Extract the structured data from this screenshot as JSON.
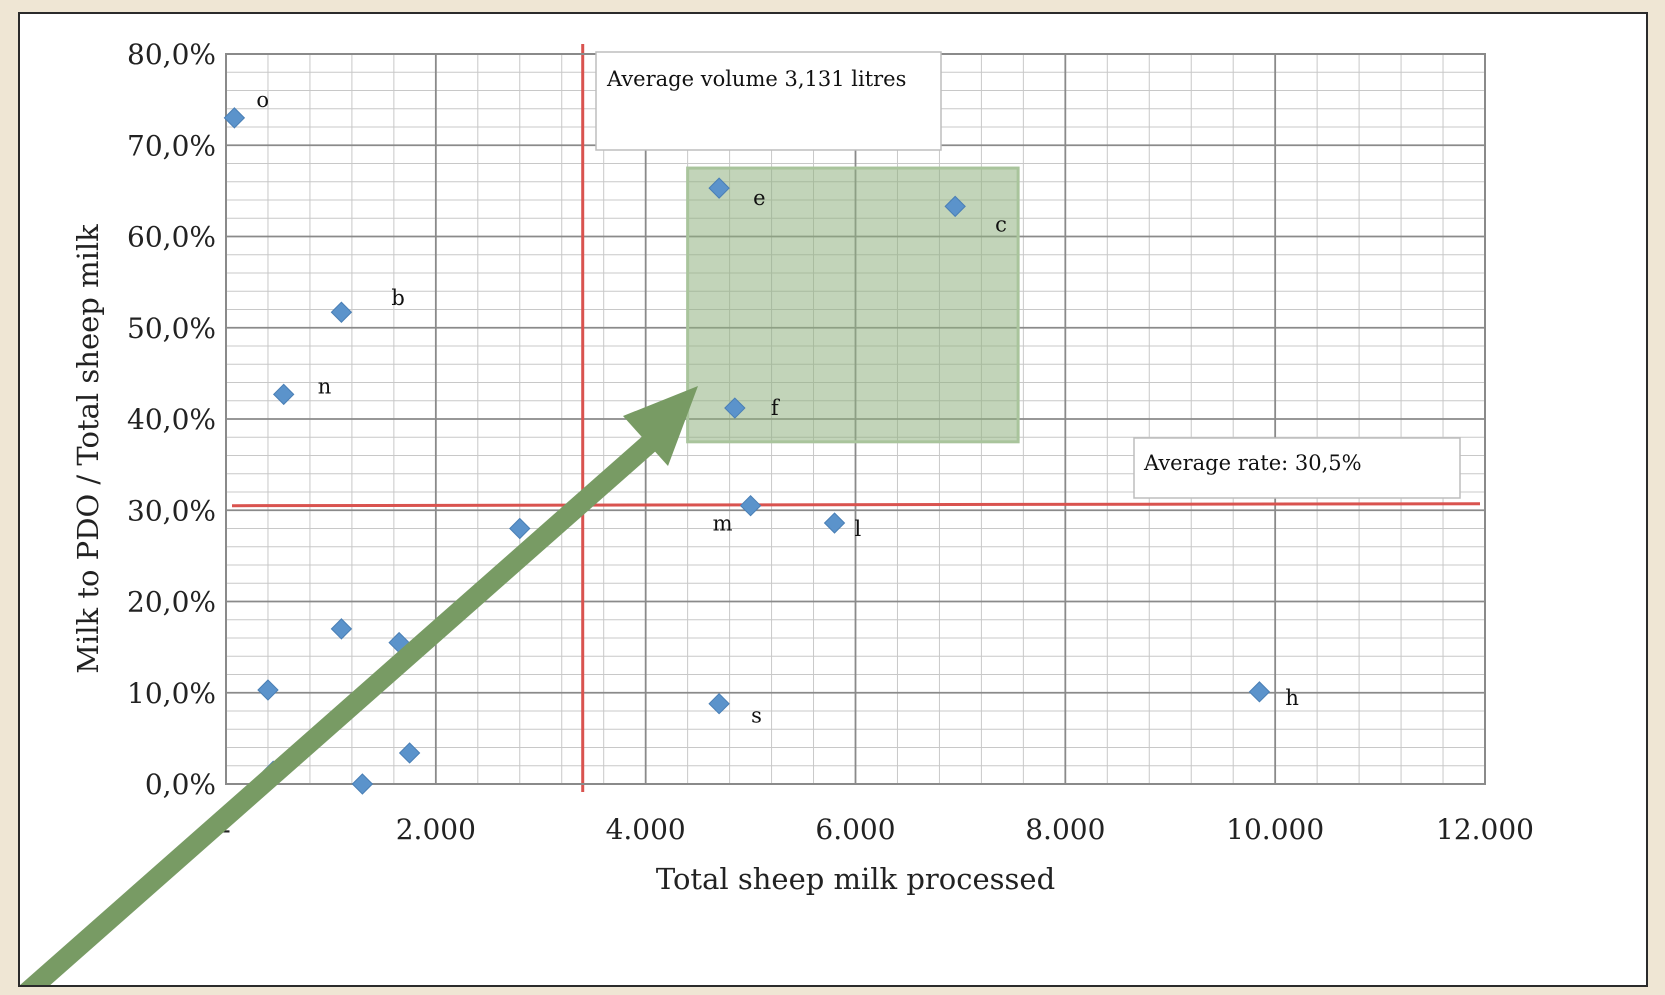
{
  "chart_data": {
    "type": "scatter",
    "xlabel": "Total sheep milk processed",
    "ylabel": "Milk to PDO / Total sheep milk",
    "xlim": [
      0,
      12000
    ],
    "ylim": [
      0,
      80
    ],
    "x_ticks": [
      "-",
      "2.000",
      "4.000",
      "6.000",
      "8.000",
      "10.000",
      "12.000"
    ],
    "y_ticks": [
      "0,0%",
      "10,0%",
      "20,0%",
      "30,0%",
      "40,0%",
      "50,0%",
      "60,0%",
      "70,0%",
      "80,0%"
    ],
    "grid": true,
    "marker_color": "#5b93cb",
    "points": [
      {
        "x": 80,
        "y": 73.0,
        "label": "o"
      },
      {
        "x": 1100,
        "y": 51.7,
        "label": "b"
      },
      {
        "x": 550,
        "y": 42.7,
        "label": "n"
      },
      {
        "x": 4700,
        "y": 65.3,
        "label": "e"
      },
      {
        "x": 6950,
        "y": 63.3,
        "label": "c"
      },
      {
        "x": 4850,
        "y": 41.2,
        "label": "f"
      },
      {
        "x": 5000,
        "y": 30.5,
        "label": "m"
      },
      {
        "x": 5800,
        "y": 28.6,
        "label": "l"
      },
      {
        "x": 4700,
        "y": 8.8,
        "label": "s"
      },
      {
        "x": 9850,
        "y": 10.1,
        "label": "h"
      },
      {
        "x": 2800,
        "y": 28.0,
        "label": ""
      },
      {
        "x": 1100,
        "y": 17.0,
        "label": ""
      },
      {
        "x": 1650,
        "y": 15.5,
        "label": ""
      },
      {
        "x": 400,
        "y": 10.3,
        "label": ""
      },
      {
        "x": 450,
        "y": 1.4,
        "label": ""
      },
      {
        "x": 1300,
        "y": 0.0,
        "label": ""
      },
      {
        "x": 1750,
        "y": 3.4,
        "label": ""
      }
    ],
    "reference_lines": [
      {
        "orientation": "vertical",
        "x": 3400,
        "color": "#d9534f"
      },
      {
        "orientation": "horizontal",
        "y": 30.5,
        "color": "#d9534f"
      }
    ],
    "highlight_region": {
      "x": [
        4400,
        7550
      ],
      "y": [
        37.5,
        67.5
      ],
      "color": "#8fb07f"
    },
    "annotations": {
      "volume_text": "Average volume 3,131 litres",
      "rate_text": "Average rate: 30,5%"
    },
    "arrow_color": "#789b64"
  }
}
